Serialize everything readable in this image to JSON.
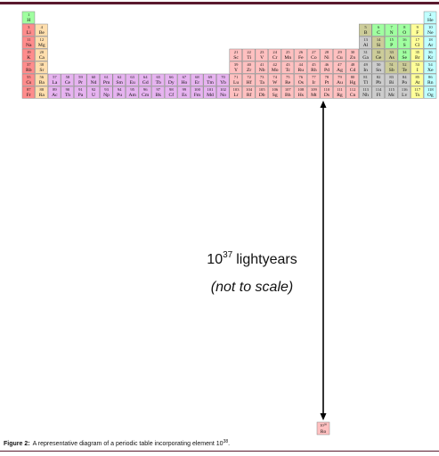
{
  "elements": [
    {
      "n": 1,
      "s": "H"
    },
    {
      "n": 2,
      "s": "He"
    },
    {
      "n": 3,
      "s": "Li"
    },
    {
      "n": 4,
      "s": "Be"
    },
    {
      "n": 5,
      "s": "B"
    },
    {
      "n": 6,
      "s": "C"
    },
    {
      "n": 7,
      "s": "N"
    },
    {
      "n": 8,
      "s": "O"
    },
    {
      "n": 9,
      "s": "F"
    },
    {
      "n": 10,
      "s": "Ne"
    },
    {
      "n": 11,
      "s": "Na"
    },
    {
      "n": 12,
      "s": "Mg"
    },
    {
      "n": 13,
      "s": "Al"
    },
    {
      "n": 14,
      "s": "Si"
    },
    {
      "n": 15,
      "s": "P"
    },
    {
      "n": 16,
      "s": "S"
    },
    {
      "n": 17,
      "s": "Cl"
    },
    {
      "n": 18,
      "s": "Ar"
    },
    {
      "n": 19,
      "s": "K"
    },
    {
      "n": 20,
      "s": "Ca"
    },
    {
      "n": 21,
      "s": "Sc"
    },
    {
      "n": 22,
      "s": "Ti"
    },
    {
      "n": 23,
      "s": "V"
    },
    {
      "n": 24,
      "s": "Cr"
    },
    {
      "n": 25,
      "s": "Mn"
    },
    {
      "n": 26,
      "s": "Fe"
    },
    {
      "n": 27,
      "s": "Co"
    },
    {
      "n": 28,
      "s": "Ni"
    },
    {
      "n": 29,
      "s": "Cu"
    },
    {
      "n": 30,
      "s": "Zn"
    },
    {
      "n": 31,
      "s": "Ga"
    },
    {
      "n": 32,
      "s": "Ge"
    },
    {
      "n": 33,
      "s": "As"
    },
    {
      "n": 34,
      "s": "Se"
    },
    {
      "n": 35,
      "s": "Br"
    },
    {
      "n": 36,
      "s": "Kr"
    },
    {
      "n": 37,
      "s": "Rb"
    },
    {
      "n": 38,
      "s": "Sr"
    },
    {
      "n": 39,
      "s": "Y"
    },
    {
      "n": 40,
      "s": "Zr"
    },
    {
      "n": 41,
      "s": "Nb"
    },
    {
      "n": 42,
      "s": "Mo"
    },
    {
      "n": 43,
      "s": "Tc"
    },
    {
      "n": 44,
      "s": "Ru"
    },
    {
      "n": 45,
      "s": "Rh"
    },
    {
      "n": 46,
      "s": "Pd"
    },
    {
      "n": 47,
      "s": "Ag"
    },
    {
      "n": 48,
      "s": "Cd"
    },
    {
      "n": 49,
      "s": "In"
    },
    {
      "n": 50,
      "s": "Sn"
    },
    {
      "n": 51,
      "s": "Sb"
    },
    {
      "n": 52,
      "s": "Te"
    },
    {
      "n": 53,
      "s": "I"
    },
    {
      "n": 54,
      "s": "Xe"
    },
    {
      "n": 55,
      "s": "Cs"
    },
    {
      "n": 56,
      "s": "Ba"
    },
    {
      "n": 57,
      "s": "La"
    },
    {
      "n": 58,
      "s": "Ce"
    },
    {
      "n": 59,
      "s": "Pr"
    },
    {
      "n": 60,
      "s": "Nd"
    },
    {
      "n": 61,
      "s": "Pm"
    },
    {
      "n": 62,
      "s": "Sm"
    },
    {
      "n": 63,
      "s": "Eu"
    },
    {
      "n": 64,
      "s": "Gd"
    },
    {
      "n": 65,
      "s": "Tb"
    },
    {
      "n": 66,
      "s": "Dy"
    },
    {
      "n": 67,
      "s": "Ho"
    },
    {
      "n": 68,
      "s": "Er"
    },
    {
      "n": 69,
      "s": "Tm"
    },
    {
      "n": 70,
      "s": "Yb"
    },
    {
      "n": 71,
      "s": "Lu"
    },
    {
      "n": 72,
      "s": "Hf"
    },
    {
      "n": 73,
      "s": "Ta"
    },
    {
      "n": 74,
      "s": "W"
    },
    {
      "n": 75,
      "s": "Re"
    },
    {
      "n": 76,
      "s": "Os"
    },
    {
      "n": 77,
      "s": "Ir"
    },
    {
      "n": 78,
      "s": "Pt"
    },
    {
      "n": 79,
      "s": "Au"
    },
    {
      "n": 80,
      "s": "Hg"
    },
    {
      "n": 81,
      "s": "Tl"
    },
    {
      "n": 82,
      "s": "Pb"
    },
    {
      "n": 83,
      "s": "Bi"
    },
    {
      "n": 84,
      "s": "Po"
    },
    {
      "n": 85,
      "s": "At"
    },
    {
      "n": 86,
      "s": "Rn"
    },
    {
      "n": 87,
      "s": "Fr"
    },
    {
      "n": 88,
      "s": "Ra"
    },
    {
      "n": 89,
      "s": "Ac"
    },
    {
      "n": 90,
      "s": "Th"
    },
    {
      "n": 91,
      "s": "Pa"
    },
    {
      "n": 92,
      "s": "U"
    },
    {
      "n": 93,
      "s": "Np"
    },
    {
      "n": 94,
      "s": "Pu"
    },
    {
      "n": 95,
      "s": "Am"
    },
    {
      "n": 96,
      "s": "Cm"
    },
    {
      "n": 97,
      "s": "Bk"
    },
    {
      "n": 98,
      "s": "Cf"
    },
    {
      "n": 99,
      "s": "Es"
    },
    {
      "n": 100,
      "s": "Fm"
    },
    {
      "n": 101,
      "s": "Md"
    },
    {
      "n": 102,
      "s": "No"
    },
    {
      "n": 103,
      "s": "Lr"
    },
    {
      "n": 104,
      "s": "Rf"
    },
    {
      "n": 105,
      "s": "Db"
    },
    {
      "n": 106,
      "s": "Sg"
    },
    {
      "n": 107,
      "s": "Bh"
    },
    {
      "n": 108,
      "s": "Hs"
    },
    {
      "n": 109,
      "s": "Mt"
    },
    {
      "n": 110,
      "s": "Ds"
    },
    {
      "n": 111,
      "s": "Rg"
    },
    {
      "n": 112,
      "s": "Cn"
    },
    {
      "n": 113,
      "s": "Nh"
    },
    {
      "n": 114,
      "s": "Fl"
    },
    {
      "n": 115,
      "s": "Mc"
    },
    {
      "n": 116,
      "s": "Lv"
    },
    {
      "n": 117,
      "s": "Ts"
    },
    {
      "n": 118,
      "s": "Og"
    }
  ],
  "far_element": {
    "base": "10",
    "exponent": "38",
    "symbol": "Ro"
  },
  "distance": {
    "base": "10",
    "exponent": "37",
    "unit": "lightyears",
    "note": "(not to scale)"
  },
  "caption": {
    "label": "Figure 2:",
    "text": "A representative diagram of a periodic table incorporating element 10",
    "exponent": "38",
    "end": "."
  }
}
